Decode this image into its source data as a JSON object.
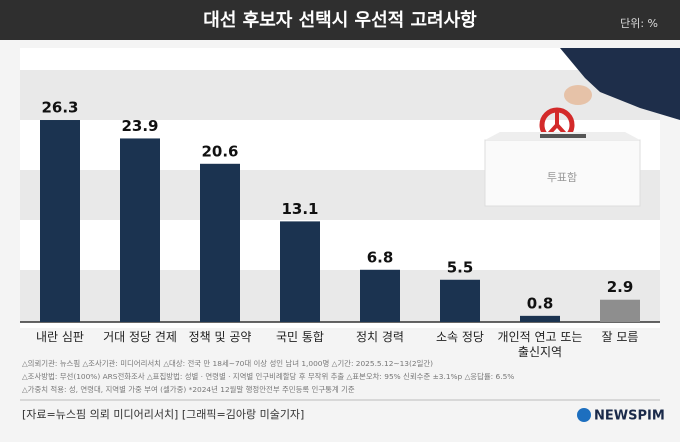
{
  "chart_data": {
    "type": "bar",
    "title": "대선 후보자 선택시 우선적 고려사항",
    "unit": "단위: %",
    "categories": [
      "내란 심판",
      "거대 정당 견제",
      "정책 및 공약",
      "국민 통합",
      "정치 경력",
      "소속 정당",
      "개인적 연고 또는 출신지역",
      "잘 모름"
    ],
    "values": [
      26.3,
      23.9,
      20.6,
      13.1,
      6.8,
      5.5,
      0.8,
      2.9
    ],
    "colors": [
      "#1b3350",
      "#1b3350",
      "#1b3350",
      "#1b3350",
      "#1b3350",
      "#1b3350",
      "#1b3350",
      "#8e8e8e"
    ],
    "box_label": "투표함",
    "footnotes": [
      "△의뢰기관: 뉴스핌 △조사기관: 미디어리서치 △대상: 전국 만 18세~70대 이상 성인 남녀 1,000명 △기간: 2025.5.12~13(2일간)",
      "△조사방법: 무선(100%) ARS전화조사 △표집방법: 성별 · 연령별 · 지역별 인구비례할당 후 무작위 추출 △표본오차: 95% 신뢰수준 ±3.1%p △응답률: 6.5%",
      "△가중치 적용: 성, 연령대, 지역별 가중 부여 (셀가중) *2024년 12월말 행정안전부 주민등록 인구통계 기준"
    ],
    "source": "[자료=뉴스핌 의뢰 미디어리서치] [그래픽=김아랑 미술기자]",
    "logo": "NEWSPIM"
  }
}
